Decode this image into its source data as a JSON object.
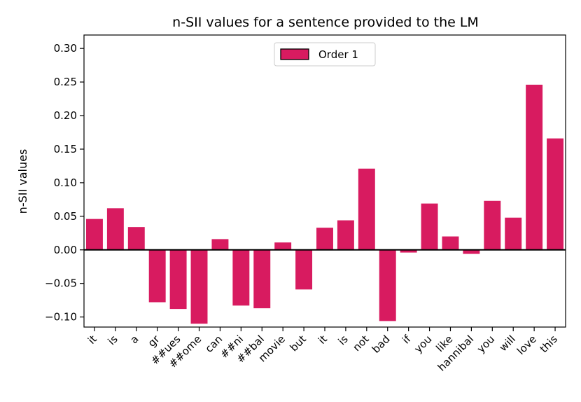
{
  "chart_data": {
    "type": "bar",
    "title": "n-SII values for a sentence provided to the LM",
    "xlabel": "",
    "ylabel": "n-SII values",
    "ylim": [
      -0.115,
      0.32
    ],
    "yticks": [
      "0.30",
      "0.25",
      "0.20",
      "0.15",
      "0.10",
      "0.05",
      "0.00",
      "−0.05",
      "−0.10"
    ],
    "ytick_values": [
      0.3,
      0.25,
      0.2,
      0.15,
      0.1,
      0.05,
      0.0,
      -0.05,
      -0.1
    ],
    "categories": [
      "it",
      "is",
      "a",
      "gr",
      "##ues",
      "##ome",
      "can",
      "##ni",
      "##bal",
      "movie",
      "but",
      "it",
      "is",
      "not",
      "bad",
      "if",
      "you",
      "like",
      "hannibal",
      "you",
      "will",
      "love",
      "this"
    ],
    "series": [
      {
        "name": "Order 1",
        "color": "#d81b60",
        "values": [
          0.046,
          0.062,
          0.034,
          -0.078,
          -0.088,
          -0.11,
          0.016,
          -0.083,
          -0.087,
          0.011,
          -0.059,
          0.033,
          0.044,
          0.121,
          -0.106,
          -0.004,
          0.069,
          0.02,
          -0.006,
          0.073,
          0.048,
          0.246,
          0.166
        ]
      }
    ],
    "legend": {
      "position": "top-center",
      "entries": [
        "Order 1"
      ]
    },
    "grid": false
  }
}
